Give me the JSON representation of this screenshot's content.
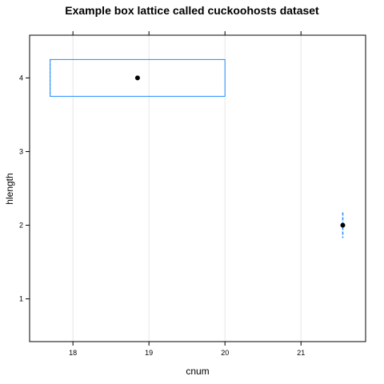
{
  "chart_data": {
    "type": "box",
    "title": "Example box lattice called cuckoohosts dataset",
    "xlabel": "cnum",
    "ylabel": "hlength",
    "xlim": [
      17.43,
      21.85
    ],
    "ylim": [
      0.42,
      4.58
    ],
    "x_ticks": [
      18,
      19,
      20,
      21
    ],
    "y_ticks": [
      1,
      2,
      3,
      4
    ],
    "grid": true,
    "box_color": "#1e8cff",
    "grid_color": "#e6e6e6",
    "series": [
      {
        "y": 4,
        "min": 17.7,
        "q1": 17.7,
        "median": 18.85,
        "q3": 20.0,
        "max": 20.0
      },
      {
        "y": 2,
        "min": 21.55,
        "q1": 21.55,
        "median": 21.55,
        "q3": 21.55,
        "max": 21.55
      }
    ]
  }
}
